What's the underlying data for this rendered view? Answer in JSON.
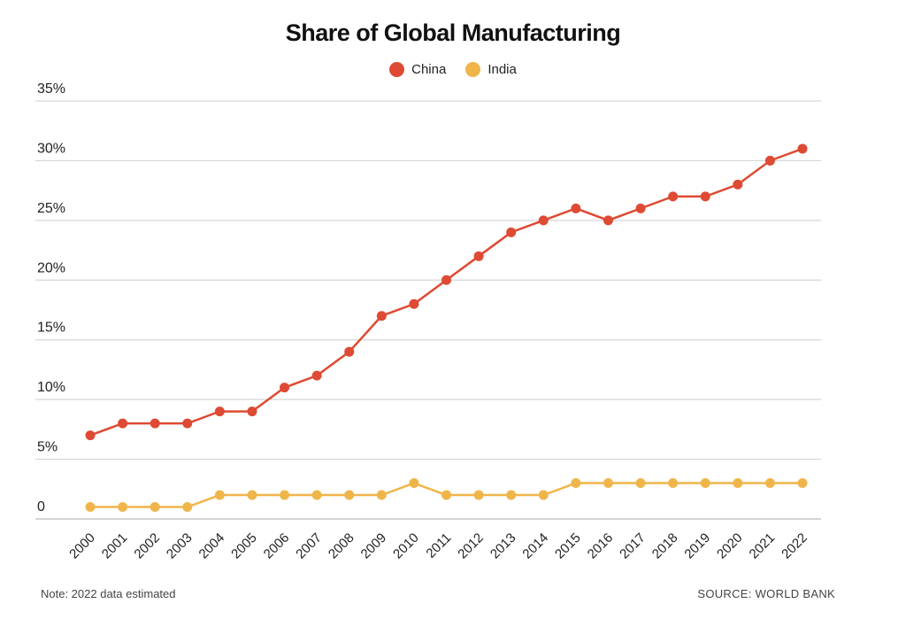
{
  "chart_data": {
    "type": "line",
    "title": "Share of Global Manufacturing",
    "categories": [
      "2000",
      "2001",
      "2002",
      "2003",
      "2004",
      "2005",
      "2006",
      "2007",
      "2008",
      "2009",
      "2010",
      "2011",
      "2012",
      "2013",
      "2014",
      "2015",
      "2016",
      "2017",
      "2018",
      "2019",
      "2020",
      "2021",
      "2022"
    ],
    "series": [
      {
        "name": "China",
        "color": "#de4a33",
        "values": [
          7,
          8,
          8,
          8,
          9,
          9,
          11,
          12,
          14,
          17,
          18,
          20,
          22,
          24,
          25,
          26,
          25,
          26,
          27,
          27,
          28,
          30,
          31
        ]
      },
      {
        "name": "India",
        "color": "#f0b54a",
        "values": [
          1,
          1,
          1,
          1,
          2,
          2,
          2,
          2,
          2,
          2,
          3,
          2,
          2,
          2,
          2,
          3,
          3,
          3,
          3,
          3,
          3,
          3,
          3
        ]
      }
    ],
    "ylim": [
      0,
      35
    ],
    "yticks": [
      0,
      5,
      10,
      15,
      20,
      25,
      30,
      35
    ],
    "ytick_labels": [
      "0",
      "5%",
      "10%",
      "15%",
      "20%",
      "25%",
      "30%",
      "35%"
    ],
    "grid": true,
    "legend": "top-center",
    "note": "Note: 2022 data estimated",
    "source": "SOURCE: WORLD BANK"
  }
}
